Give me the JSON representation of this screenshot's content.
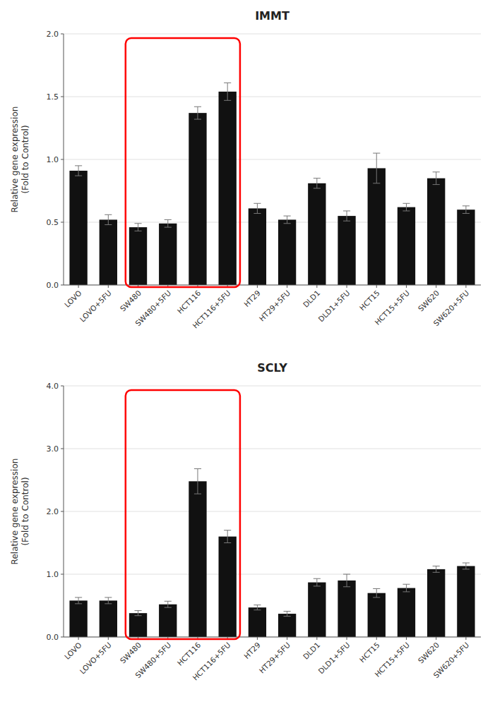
{
  "chart_data": [
    {
      "type": "bar",
      "title": "IMMT",
      "ylabel": "Relative gene expression\n(Fold to Control)",
      "categories": [
        "LOVO",
        "LOVO+5FU",
        "SW480",
        "SW480+5FU",
        "HCT116",
        "HCT116+5FU",
        "HT29",
        "HT29+5FU",
        "DLD1",
        "DLD1+5FU",
        "HCT15",
        "HCT15+5FU",
        "SW620",
        "SW620+5FU"
      ],
      "values": [
        0.91,
        0.52,
        0.46,
        0.49,
        1.37,
        1.54,
        0.61,
        0.52,
        0.81,
        0.55,
        0.93,
        0.62,
        0.85,
        0.6
      ],
      "errors": [
        0.04,
        0.04,
        0.03,
        0.03,
        0.05,
        0.07,
        0.04,
        0.03,
        0.04,
        0.04,
        0.12,
        0.03,
        0.05,
        0.03
      ],
      "color": "#111111",
      "ylim": [
        0,
        2.0
      ],
      "yticks": [
        {
          "value": 0.0,
          "label": "0.0"
        },
        0.5,
        {
          "value": 1.0,
          "label": "1.0"
        },
        1.5,
        {
          "value": 2.0,
          "label": "2.0"
        }
      ],
      "grid": true,
      "highlight": {
        "categories": [
          "SW480",
          "HCT116+5FU"
        ],
        "color": "red"
      }
    },
    {
      "type": "bar",
      "title": "SCLY",
      "ylabel": "Relative gene expression\n(Fold to Control)",
      "categories": [
        "LOVO",
        "LOVO+5FU",
        "SW480",
        "SW480+5FU",
        "HCT116",
        "HCT116+5FU",
        "HT29",
        "HT29+5FU",
        "DLD1",
        "DLD1+5FU",
        "HCT15",
        "HCT15+5FU",
        "SW620",
        "SW620+5FU"
      ],
      "values": [
        0.58,
        0.58,
        0.38,
        0.52,
        2.48,
        1.6,
        0.47,
        0.37,
        0.87,
        0.9,
        0.7,
        0.78,
        1.08,
        1.13
      ],
      "errors": [
        0.05,
        0.05,
        0.04,
        0.05,
        0.2,
        0.1,
        0.04,
        0.04,
        0.06,
        0.1,
        0.07,
        0.06,
        0.05,
        0.05
      ],
      "color": "#111111",
      "ylim": [
        0,
        4.0
      ],
      "yticks": [
        {
          "value": 0.0,
          "label": "0.0"
        },
        {
          "value": 1.0,
          "label": "1.0"
        },
        {
          "value": 2.0,
          "label": "2.0"
        },
        {
          "value": 3.0,
          "label": "3.0"
        },
        {
          "value": 4.0,
          "label": "4.0"
        }
      ],
      "grid": true,
      "highlight": {
        "categories": [
          "SW480",
          "HCT116+5FU"
        ],
        "color": "red"
      }
    }
  ]
}
